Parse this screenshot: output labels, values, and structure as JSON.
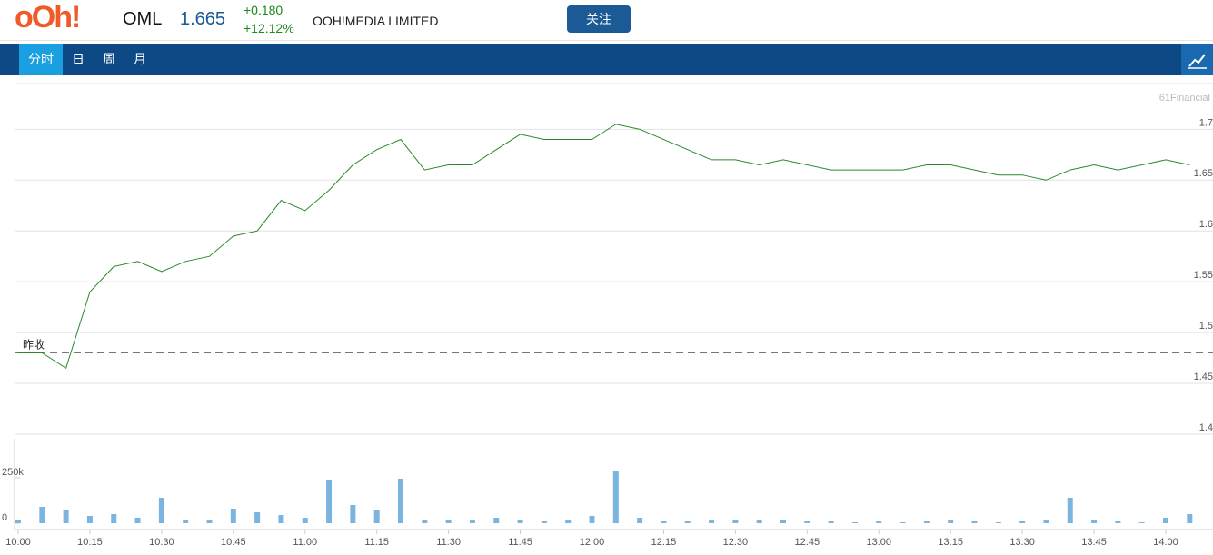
{
  "header": {
    "logo": "oOh!",
    "symbol": "OML",
    "price": "1.665",
    "change": "+0.180",
    "change_pct": "+12.12%",
    "company": "OOH!MEDIA LIMITED",
    "follow_button": "关注"
  },
  "tabs": [
    "分时",
    "日",
    "周",
    "月"
  ],
  "chart_data": {
    "type": "line",
    "watermark": "61Financial",
    "prev_close_label": "昨收",
    "prev_close": 1.48,
    "x": [
      "10:00",
      "10:05",
      "10:10",
      "10:15",
      "10:20",
      "10:25",
      "10:30",
      "10:35",
      "10:40",
      "10:45",
      "10:50",
      "10:55",
      "11:00",
      "11:05",
      "11:10",
      "11:15",
      "11:20",
      "11:25",
      "11:30",
      "11:35",
      "11:40",
      "11:45",
      "11:50",
      "11:55",
      "12:00",
      "12:05",
      "12:10",
      "12:15",
      "12:20",
      "12:25",
      "12:30",
      "12:35",
      "12:40",
      "12:45",
      "12:50",
      "12:55",
      "13:00",
      "13:05",
      "13:10",
      "13:15",
      "13:20",
      "13:25",
      "13:30",
      "13:35",
      "13:40",
      "13:45",
      "13:50",
      "13:55",
      "14:00",
      "14:05"
    ],
    "series": [
      {
        "name": "Price",
        "color": "#2a8a2a",
        "values": [
          1.48,
          1.48,
          1.465,
          1.54,
          1.565,
          1.57,
          1.56,
          1.57,
          1.575,
          1.595,
          1.6,
          1.63,
          1.62,
          1.64,
          1.665,
          1.68,
          1.69,
          1.66,
          1.665,
          1.665,
          1.68,
          1.695,
          1.69,
          1.69,
          1.69,
          1.705,
          1.7,
          1.69,
          1.68,
          1.67,
          1.67,
          1.665,
          1.67,
          1.665,
          1.66,
          1.66,
          1.66,
          1.66,
          1.665,
          1.665,
          1.66,
          1.655,
          1.655,
          1.65,
          1.66,
          1.665,
          1.66,
          1.665,
          1.67,
          1.665
        ]
      },
      {
        "name": "Volume",
        "color": "#7ab4e0",
        "axis": "y2",
        "values": [
          20000,
          90000,
          70000,
          40000,
          50000,
          30000,
          140000,
          20000,
          15000,
          80000,
          60000,
          45000,
          30000,
          240000,
          100000,
          70000,
          245000,
          20000,
          15000,
          20000,
          30000,
          15000,
          10000,
          20000,
          40000,
          290000,
          30000,
          10000,
          10000,
          15000,
          15000,
          20000,
          15000,
          10000,
          10000,
          5000,
          10000,
          5000,
          10000,
          15000,
          10000,
          5000,
          10000,
          15000,
          140000,
          20000,
          10000,
          5000,
          30000,
          50000
        ]
      }
    ],
    "ylim": [
      1.4,
      1.745
    ],
    "yticks": [
      1.4,
      1.45,
      1.5,
      1.55,
      1.6,
      1.65,
      1.7
    ],
    "y2lim": [
      0,
      465000
    ],
    "y2ticks": [
      0,
      {
        "value": 250000,
        "label": "250k"
      }
    ],
    "grid": true
  }
}
